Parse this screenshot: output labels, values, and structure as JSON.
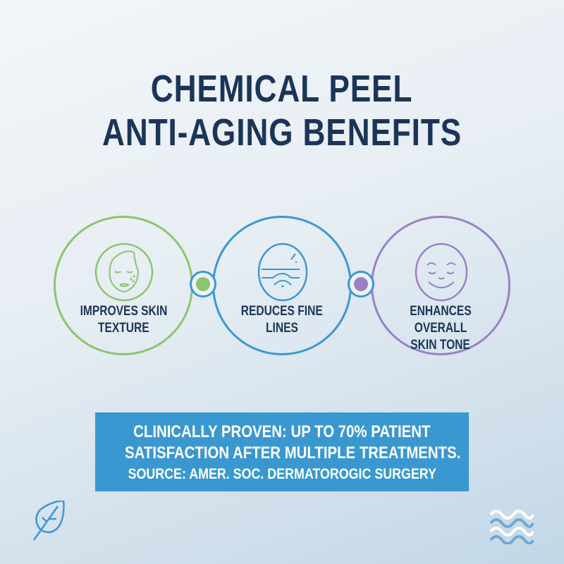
{
  "title": {
    "line1": "CHEMICAL PEEL",
    "line2": "ANTI-AGING BENEFITS"
  },
  "benefits": [
    {
      "label1": "IMPROVES SKIN",
      "label2": "TEXTURE",
      "icon": "face-icon",
      "color": "#8cc56e"
    },
    {
      "label1": "REDUCES FINE",
      "label2": "LINES",
      "icon": "skin-layers-icon",
      "color": "#3b97d6"
    },
    {
      "label1": "ENHANCES OVERALL",
      "label2": "SKIN TONE",
      "icon": "smiling-face-icon",
      "color": "#9a80c4"
    }
  ],
  "callout": {
    "line1": "CLINICALLY PROVEN: UP TO 70% PATIENT",
    "line2": "SATISFACTION AFTER MULTIPLE TREATMENTS.",
    "line3": "SOURCE: AMER. SOC. DERMATOROGIC SURGERY",
    "color": "#3a98d0"
  },
  "footer": {
    "left_icon": "leaf-icon",
    "right_icon": "waves-icon"
  }
}
